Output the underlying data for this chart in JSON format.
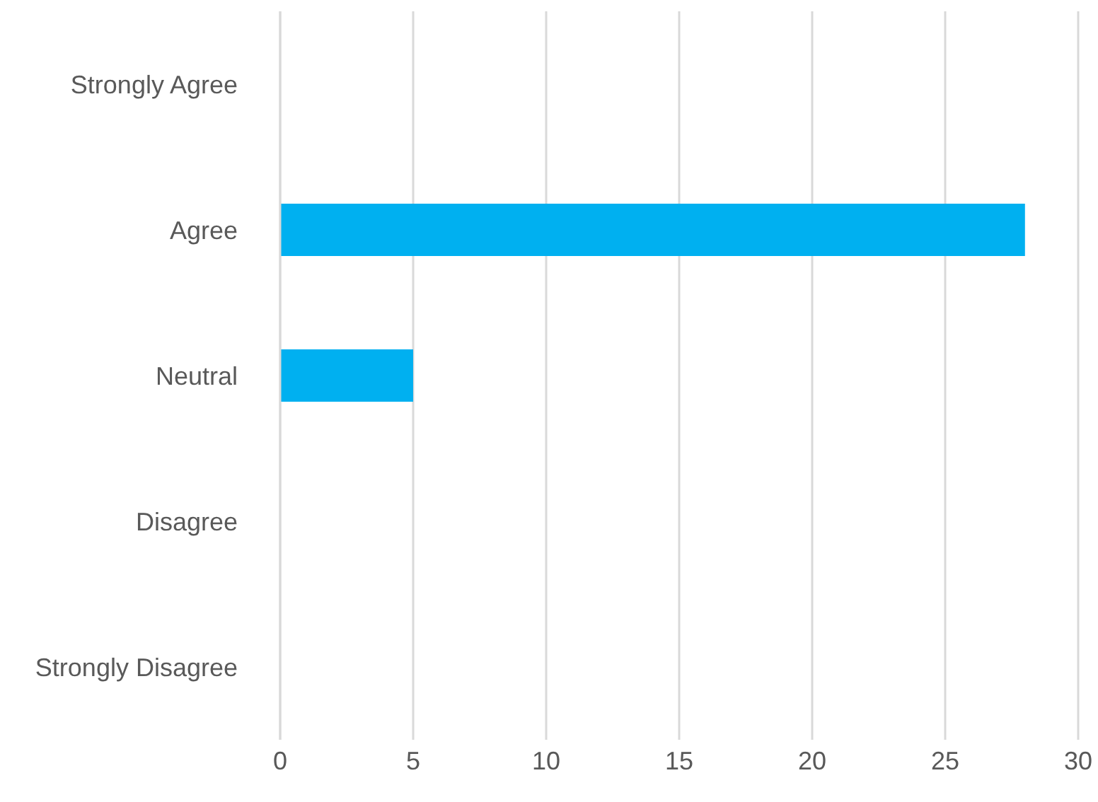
{
  "chart_data": {
    "type": "bar",
    "orientation": "horizontal",
    "categories": [
      "Strongly Agree",
      "Agree",
      "Neutral",
      "Disagree",
      "Strongly Disagree"
    ],
    "values": [
      0,
      28,
      5,
      0,
      0
    ],
    "color": "#00b0f0",
    "xlim": [
      0,
      30
    ],
    "xticks": [
      0,
      5,
      10,
      15,
      20,
      25,
      30
    ],
    "grid": "x"
  }
}
